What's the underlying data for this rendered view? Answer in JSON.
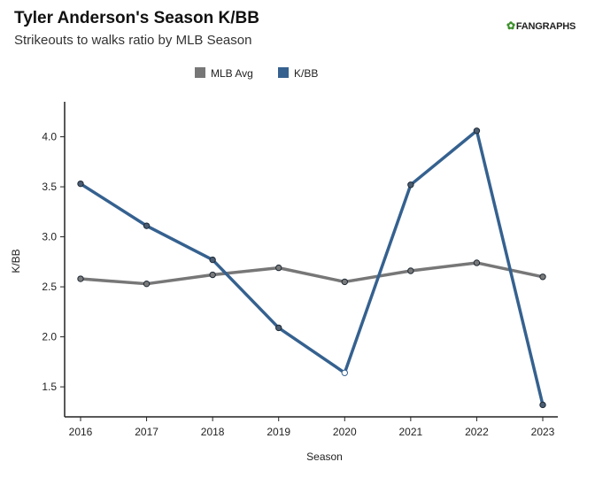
{
  "header": {
    "title": "Tyler Anderson's Season K/BB",
    "subtitle": "Strikeouts to walks ratio by MLB Season",
    "logo_text": "FANGRAPHS",
    "logo_icon": "fangraphs-leaf-icon"
  },
  "chart_data": {
    "type": "line",
    "xlabel": "Season",
    "ylabel": "K/BB",
    "x": [
      "2016",
      "2017",
      "2018",
      "2019",
      "2020",
      "2021",
      "2022",
      "2023"
    ],
    "ylim": [
      1.2,
      4.35
    ],
    "yticks": [
      "1.5",
      "2.0",
      "2.5",
      "3.0",
      "3.5",
      "4.0"
    ],
    "legend_position": "top-center",
    "grid": false,
    "series": [
      {
        "name": "MLB Avg",
        "color": "#777777",
        "values": [
          2.58,
          2.53,
          2.62,
          2.69,
          2.55,
          2.66,
          2.74,
          2.6
        ]
      },
      {
        "name": "K/BB",
        "color": "#35618f",
        "values": [
          3.53,
          3.11,
          2.77,
          2.09,
          1.64,
          3.52,
          4.06,
          1.32
        ],
        "hollow_points": [
          "2020"
        ]
      }
    ]
  }
}
